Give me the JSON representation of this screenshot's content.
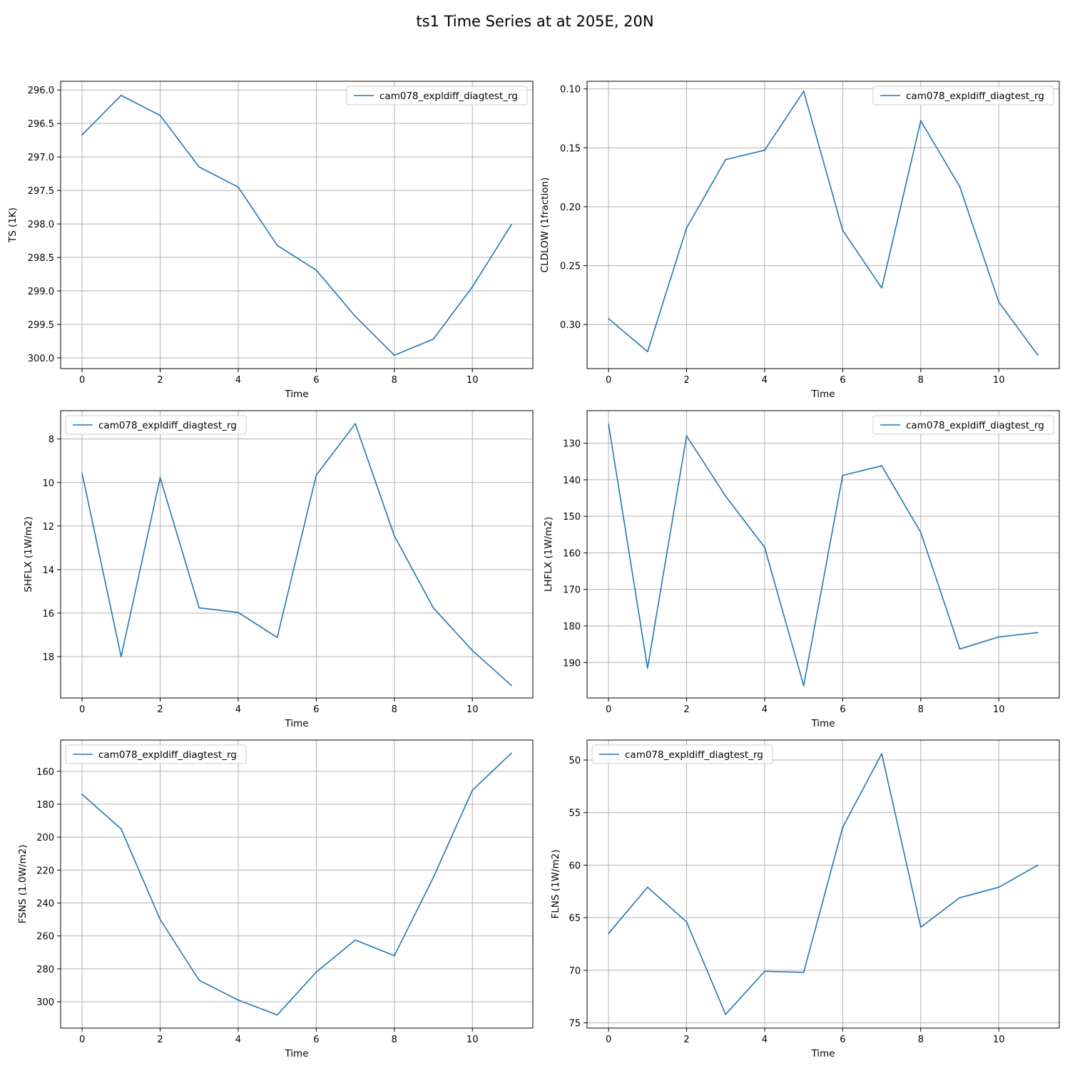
{
  "figure": {
    "suptitle": "ts1 Time Series at at 205E, 20N"
  },
  "style": {
    "line_color": "#1f77b4",
    "grid_color": "#b0b0b0",
    "axes_color": "#000000",
    "background": "#ffffff"
  },
  "chart_data": [
    {
      "type": "line",
      "xlabel": "Time",
      "ylabel": "TS (1K)",
      "xlim": [
        -0.55,
        11.55
      ],
      "ylim": [
        300.16,
        295.87
      ],
      "y_inverted": true,
      "xticks": [
        0,
        2,
        4,
        6,
        8,
        10
      ],
      "yticks": [
        296.0,
        296.5,
        297.0,
        297.5,
        298.0,
        298.5,
        299.0,
        299.5,
        300.0
      ],
      "ytick_labels": [
        "296.0",
        "296.5",
        "297.0",
        "297.5",
        "298.0",
        "298.5",
        "299.0",
        "299.5",
        "300.0"
      ],
      "grid": true,
      "legend": "upper right",
      "series": [
        {
          "name": "cam078_expldiff_diagtest_rg",
          "x": [
            0,
            1,
            2,
            3,
            4,
            5,
            6,
            7,
            8,
            9,
            10,
            11
          ],
          "values": [
            296.67,
            296.08,
            296.38,
            297.15,
            297.45,
            298.32,
            298.69,
            299.38,
            299.96,
            299.72,
            298.94,
            298.01
          ]
        }
      ]
    },
    {
      "type": "line",
      "xlabel": "Time",
      "ylabel": "CLDLOW (1fraction)",
      "xlim": [
        -0.55,
        11.55
      ],
      "ylim": [
        0.3374,
        0.0935
      ],
      "y_inverted": true,
      "xticks": [
        0,
        2,
        4,
        6,
        8,
        10
      ],
      "yticks": [
        0.1,
        0.15,
        0.2,
        0.25,
        0.3
      ],
      "ytick_labels": [
        "0.10",
        "0.15",
        "0.20",
        "0.25",
        "0.30"
      ],
      "grid": true,
      "legend": "upper right",
      "series": [
        {
          "name": "cam078_expldiff_diagtest_rg",
          "x": [
            0,
            1,
            2,
            3,
            4,
            5,
            6,
            7,
            8,
            9,
            10,
            11
          ],
          "values": [
            0.295,
            0.323,
            0.218,
            0.16,
            0.152,
            0.102,
            0.22,
            0.269,
            0.127,
            0.183,
            0.281,
            0.326
          ]
        }
      ]
    },
    {
      "type": "line",
      "xlabel": "Time",
      "ylabel": "SHFLX (1W/m2)",
      "xlim": [
        -0.55,
        11.55
      ],
      "ylim": [
        19.9,
        6.7
      ],
      "y_inverted": true,
      "xticks": [
        0,
        2,
        4,
        6,
        8,
        10
      ],
      "yticks": [
        8,
        10,
        12,
        14,
        16,
        18
      ],
      "ytick_labels": [
        "8",
        "10",
        "12",
        "14",
        "16",
        "18"
      ],
      "grid": true,
      "legend": "upper left",
      "series": [
        {
          "name": "cam078_expldiff_diagtest_rg",
          "x": [
            0,
            1,
            2,
            3,
            4,
            5,
            6,
            7,
            8,
            9,
            10,
            11
          ],
          "values": [
            9.58,
            18.0,
            9.78,
            15.76,
            15.97,
            17.12,
            9.66,
            7.3,
            12.45,
            15.76,
            17.72,
            19.32
          ]
        }
      ]
    },
    {
      "type": "line",
      "xlabel": "Time",
      "ylabel": "LHFLX (1W/m2)",
      "xlim": [
        -0.55,
        11.55
      ],
      "ylim": [
        199.7,
        121.1
      ],
      "y_inverted": true,
      "xticks": [
        0,
        2,
        4,
        6,
        8,
        10
      ],
      "yticks": [
        130,
        140,
        150,
        160,
        170,
        180,
        190
      ],
      "ytick_labels": [
        "130",
        "140",
        "150",
        "160",
        "170",
        "180",
        "190"
      ],
      "grid": true,
      "legend": "upper right",
      "series": [
        {
          "name": "cam078_expldiff_diagtest_rg",
          "x": [
            0,
            1,
            2,
            3,
            4,
            5,
            6,
            7,
            8,
            9,
            10,
            11
          ],
          "values": [
            124.8,
            191.5,
            128.0,
            144.5,
            158.5,
            196.3,
            138.8,
            136.2,
            154.4,
            186.3,
            183.0,
            181.8
          ]
        }
      ]
    },
    {
      "type": "line",
      "xlabel": "Time",
      "ylabel": "FSNS (1.0W/m2)",
      "xlim": [
        -0.55,
        11.55
      ],
      "ylim": [
        316.0,
        141.0
      ],
      "y_inverted": true,
      "xticks": [
        0,
        2,
        4,
        6,
        8,
        10
      ],
      "yticks": [
        160,
        180,
        200,
        220,
        240,
        260,
        280,
        300
      ],
      "ytick_labels": [
        "160",
        "180",
        "200",
        "220",
        "240",
        "260",
        "280",
        "300"
      ],
      "grid": true,
      "legend": "upper left",
      "series": [
        {
          "name": "cam078_expldiff_diagtest_rg",
          "x": [
            0,
            1,
            2,
            3,
            4,
            5,
            6,
            7,
            8,
            9,
            10,
            11
          ],
          "values": [
            174.0,
            195.0,
            250.0,
            287.0,
            299.0,
            308.0,
            282.0,
            262.5,
            272.0,
            224.5,
            171.5,
            149.0
          ]
        }
      ]
    },
    {
      "type": "line",
      "xlabel": "Time",
      "ylabel": "FLNS (1W/m2)",
      "xlim": [
        -0.55,
        11.55
      ],
      "ylim": [
        75.5,
        48.1
      ],
      "y_inverted": true,
      "xticks": [
        0,
        2,
        4,
        6,
        8,
        10
      ],
      "yticks": [
        50,
        55,
        60,
        65,
        70,
        75
      ],
      "ytick_labels": [
        "50",
        "55",
        "60",
        "65",
        "70",
        "75"
      ],
      "grid": true,
      "legend": "upper left",
      "series": [
        {
          "name": "cam078_expldiff_diagtest_rg",
          "x": [
            0,
            1,
            2,
            3,
            4,
            5,
            6,
            7,
            8,
            9,
            10,
            11
          ],
          "values": [
            66.5,
            62.1,
            65.4,
            74.2,
            70.1,
            70.2,
            56.4,
            49.4,
            65.9,
            63.1,
            62.1,
            60.0
          ]
        }
      ]
    }
  ]
}
